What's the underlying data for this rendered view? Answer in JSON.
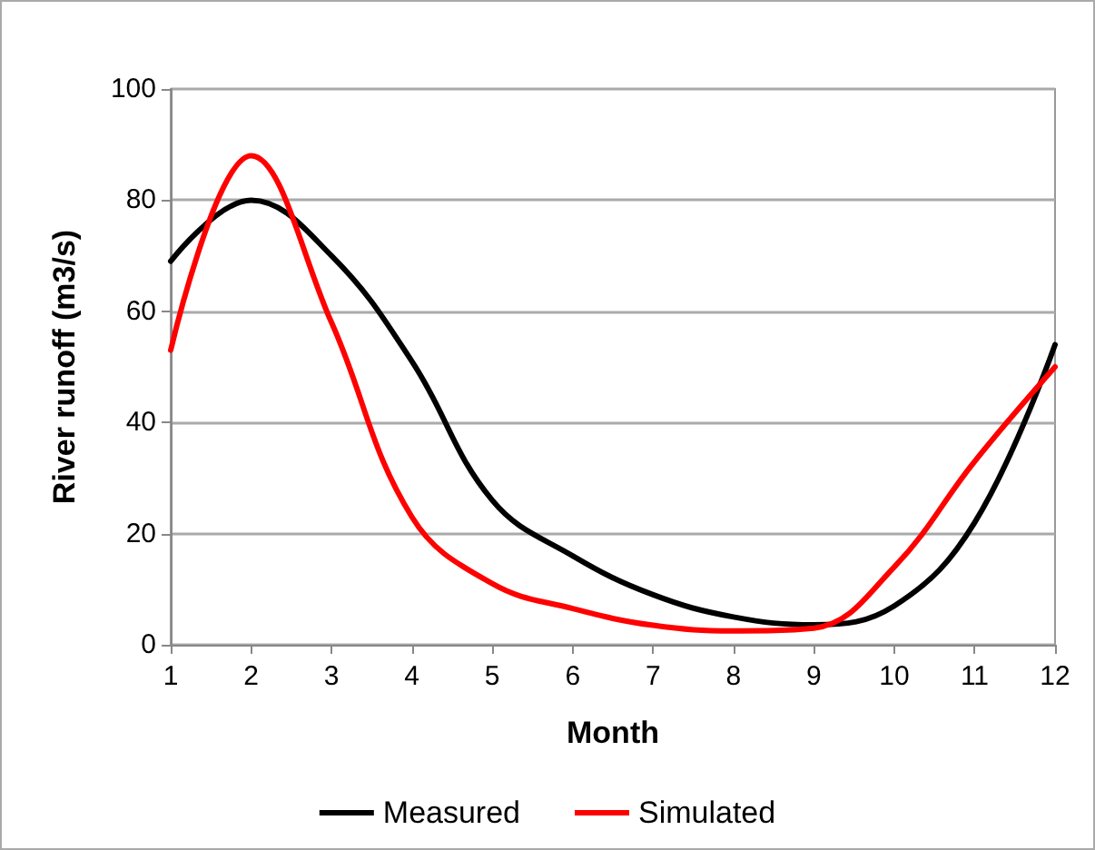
{
  "chart_data": {
    "type": "line",
    "xlabel": "Month",
    "ylabel": "River runoff (m3/s)",
    "x": [
      1,
      2,
      3,
      4,
      5,
      6,
      7,
      8,
      9,
      10,
      11,
      12
    ],
    "series": [
      {
        "name": "Measured",
        "color": "#000000",
        "values": [
          69,
          80,
          70,
          51,
          26,
          16,
          9,
          5,
          3.6,
          7,
          22,
          54
        ]
      },
      {
        "name": "Simulated",
        "color": "#ff0000",
        "values": [
          53,
          88,
          58,
          23,
          11,
          6.5,
          3.5,
          2.5,
          3,
          14,
          33,
          50
        ]
      }
    ],
    "xlim": [
      1,
      12
    ],
    "xticks": [
      1,
      2,
      3,
      4,
      5,
      6,
      7,
      8,
      9,
      10,
      11,
      12
    ],
    "ylim": [
      0,
      100
    ],
    "yticks": [
      0,
      20,
      40,
      60,
      80,
      100
    ],
    "grid": "y",
    "legend": "bottom",
    "marker": "none",
    "line_style": "solid"
  }
}
